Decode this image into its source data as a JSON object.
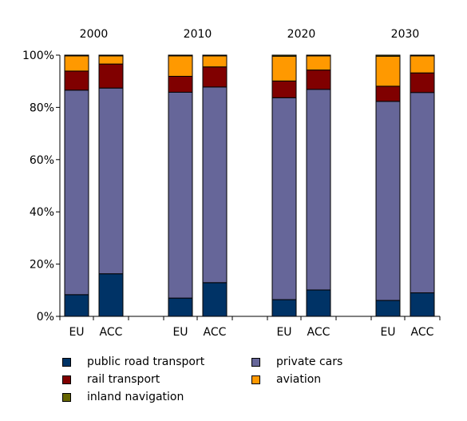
{
  "chart_data": {
    "type": "bar",
    "stacked": true,
    "normalized_percent": true,
    "groups": [
      "2000",
      "2010",
      "2020",
      "2030"
    ],
    "categories": [
      "EU",
      "ACC"
    ],
    "yticks": [
      "0%",
      "20%",
      "40%",
      "60%",
      "80%",
      "100%"
    ],
    "ylim": [
      0,
      100
    ],
    "grid": false,
    "legend_position": "bottom",
    "series": [
      {
        "name": "public road transport",
        "color": "#003366",
        "values": [
          [
            8.3,
            16.3
          ],
          [
            7.0,
            12.9
          ],
          [
            6.4,
            10.1
          ],
          [
            6.1,
            9.0
          ]
        ]
      },
      {
        "name": "private cars",
        "color": "#666699",
        "values": [
          [
            78.3,
            71.1
          ],
          [
            78.8,
            74.9
          ],
          [
            77.3,
            76.8
          ],
          [
            76.2,
            76.7
          ]
        ]
      },
      {
        "name": "rail transport",
        "color": "#800000",
        "values": [
          [
            7.3,
            9.2
          ],
          [
            6.1,
            7.7
          ],
          [
            6.4,
            7.4
          ],
          [
            5.8,
            7.5
          ]
        ]
      },
      {
        "name": "aviation",
        "color": "#ff9900",
        "values": [
          [
            5.8,
            3.1
          ],
          [
            7.8,
            4.2
          ],
          [
            9.5,
            5.4
          ],
          [
            11.5,
            6.5
          ]
        ]
      },
      {
        "name": "inland navigation",
        "color": "#666600",
        "values": [
          [
            0.3,
            0.3
          ],
          [
            0.3,
            0.3
          ],
          [
            0.4,
            0.3
          ],
          [
            0.4,
            0.3
          ]
        ]
      }
    ]
  }
}
